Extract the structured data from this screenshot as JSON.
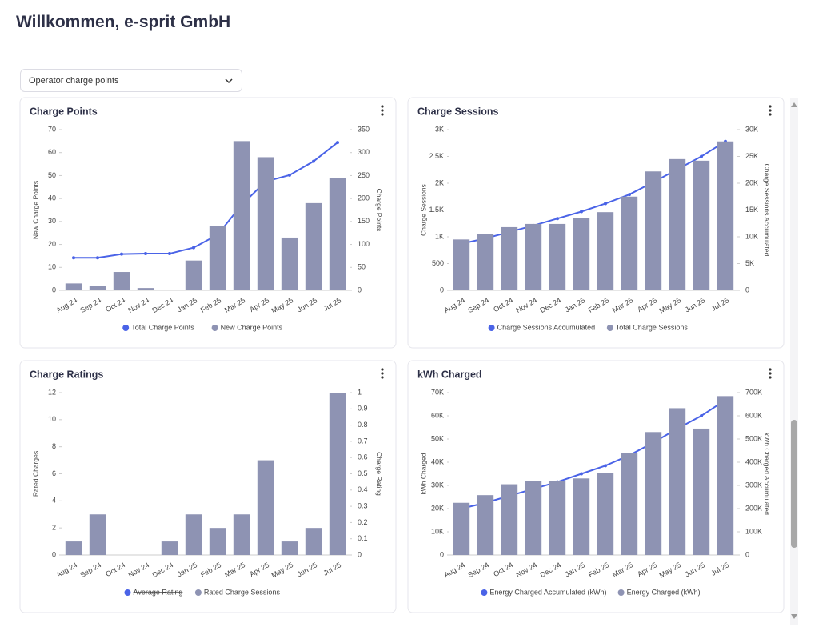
{
  "header": {
    "title": "Willkommen, e-sprit GmbH"
  },
  "filter": {
    "label": "Operator charge points"
  },
  "chart_data": [
    {
      "type": "combo",
      "title": "Charge Points",
      "categories": [
        "Aug 24",
        "Sep 24",
        "Oct 24",
        "Nov 24",
        "Dec 24",
        "Jan 25",
        "Feb 25",
        "Mar 25",
        "Apr 25",
        "May 25",
        "Jun 25",
        "Jul 25"
      ],
      "ylabel": "New Charge Points",
      "y2label": "Charge Points",
      "ylim": [
        0,
        70
      ],
      "yticks": [
        0,
        10,
        20,
        30,
        40,
        50,
        60,
        70
      ],
      "y2lim": [
        0,
        350
      ],
      "y2ticks": [
        0,
        50,
        100,
        150,
        200,
        250,
        300,
        350
      ],
      "series": [
        {
          "name": "Total Charge Points",
          "color": "#4a63e7",
          "type": "line",
          "axis": "y2",
          "values": [
            71,
            71,
            79,
            80,
            80,
            93,
            121,
            186,
            237,
            251,
            281,
            322
          ]
        },
        {
          "name": "New Charge Points",
          "color": "#8e93b3",
          "type": "bar",
          "values": [
            3,
            2,
            8,
            1,
            0,
            13,
            28,
            65,
            58,
            23,
            38,
            49
          ]
        }
      ]
    },
    {
      "type": "combo",
      "title": "Charge Sessions",
      "categories": [
        "Aug 24",
        "Sep 24",
        "Oct 24",
        "Nov 24",
        "Dec 24",
        "Jan 25",
        "Feb 25",
        "Mar 25",
        "Apr 25",
        "May 25",
        "Jun 25",
        "Jul 25"
      ],
      "ylabel": "Charge Sessions",
      "y2label": "Charge Sessions Accumulated",
      "ylim": [
        0,
        3000
      ],
      "yticks": [
        0,
        500,
        {
          "value": 1000,
          "label": "1K"
        },
        {
          "value": 1500,
          "label": "1.5K"
        },
        {
          "value": 2000,
          "label": "2K"
        },
        {
          "value": 2500,
          "label": "2.5K"
        },
        {
          "value": 3000,
          "label": "3K"
        }
      ],
      "y2lim": [
        0,
        30000
      ],
      "y2ticks": [
        0,
        {
          "value": 5000,
          "label": "5K"
        },
        {
          "value": 10000,
          "label": "10K"
        },
        {
          "value": 15000,
          "label": "15K"
        },
        {
          "value": 20000,
          "label": "20K"
        },
        {
          "value": 25000,
          "label": "25K"
        },
        {
          "value": 30000,
          "label": "30K"
        }
      ],
      "series": [
        {
          "name": "Charge Sessions Accumulated",
          "color": "#4a63e7",
          "type": "line",
          "axis": "y2",
          "values": [
            8700,
            9700,
            10900,
            12100,
            13400,
            14700,
            16200,
            17900,
            20200,
            22600,
            25000,
            27800
          ]
        },
        {
          "name": "Total Charge Sessions",
          "color": "#8e93b3",
          "type": "bar",
          "values": [
            950,
            1050,
            1180,
            1240,
            1240,
            1350,
            1460,
            1750,
            2220,
            2450,
            2420,
            2780
          ]
        }
      ]
    },
    {
      "type": "combo",
      "title": "Charge Ratings",
      "categories": [
        "Aug 24",
        "Sep 24",
        "Oct 24",
        "Nov 24",
        "Dec 24",
        "Jan 25",
        "Feb 25",
        "Mar 25",
        "Apr 25",
        "May 25",
        "Jun 25",
        "Jul 25"
      ],
      "ylabel": "Rated Charges",
      "y2label": "Charge Rating",
      "ylim": [
        0,
        12
      ],
      "yticks": [
        0,
        2,
        4,
        6,
        8,
        10,
        12
      ],
      "y2lim": [
        0,
        1
      ],
      "y2ticks": [
        0,
        0.1,
        0.2,
        0.3,
        0.4,
        0.5,
        0.6,
        0.7,
        0.8,
        0.9,
        1
      ],
      "series": [
        {
          "name": "Average Rating",
          "color": "#4a63e7",
          "type": "line",
          "axis": "y2",
          "hidden": true,
          "values": [
            null,
            null,
            null,
            null,
            null,
            null,
            null,
            null,
            null,
            null,
            null,
            null
          ]
        },
        {
          "name": "Rated Charge Sessions",
          "color": "#8e93b3",
          "type": "bar",
          "values": [
            1,
            3,
            0,
            0,
            1,
            3,
            2,
            3,
            7,
            1,
            2,
            12
          ]
        }
      ]
    },
    {
      "type": "combo",
      "title": "kWh Charged",
      "categories": [
        "Aug 24",
        "Sep 24",
        "Oct 24",
        "Nov 24",
        "Dec 24",
        "Jan 25",
        "Feb 25",
        "Mar 25",
        "Apr 25",
        "May 25",
        "Jun 25",
        "Jul 25"
      ],
      "ylabel": "kWh Charged",
      "y2label": "kWh Charged Accumulated",
      "ylim": [
        0,
        70000
      ],
      "yticks": [
        0,
        {
          "value": 10000,
          "label": "10K"
        },
        {
          "value": 20000,
          "label": "20K"
        },
        {
          "value": 30000,
          "label": "30K"
        },
        {
          "value": 40000,
          "label": "40K"
        },
        {
          "value": 50000,
          "label": "50K"
        },
        {
          "value": 60000,
          "label": "60K"
        },
        {
          "value": 70000,
          "label": "70K"
        }
      ],
      "y2lim": [
        0,
        700000
      ],
      "y2ticks": [
        0,
        {
          "value": 100000,
          "label": "100K"
        },
        {
          "value": 200000,
          "label": "200K"
        },
        {
          "value": 300000,
          "label": "300K"
        },
        {
          "value": 400000,
          "label": "400K"
        },
        {
          "value": 500000,
          "label": "500K"
        },
        {
          "value": 600000,
          "label": "600K"
        },
        {
          "value": 700000,
          "label": "700K"
        }
      ],
      "series": [
        {
          "name": "Energy Charged Accumulated (kWh)",
          "color": "#4a63e7",
          "type": "line",
          "axis": "y2",
          "values": [
            200000,
            225000,
            255000,
            285000,
            315000,
            350000,
            385000,
            430000,
            485000,
            545000,
            600000,
            668000
          ]
        },
        {
          "name": "Energy Charged (kWh)",
          "color": "#8e93b3",
          "type": "bar",
          "values": [
            22500,
            25800,
            30500,
            31800,
            31800,
            33000,
            35500,
            43800,
            53000,
            63300,
            54500,
            68500
          ]
        }
      ]
    }
  ]
}
